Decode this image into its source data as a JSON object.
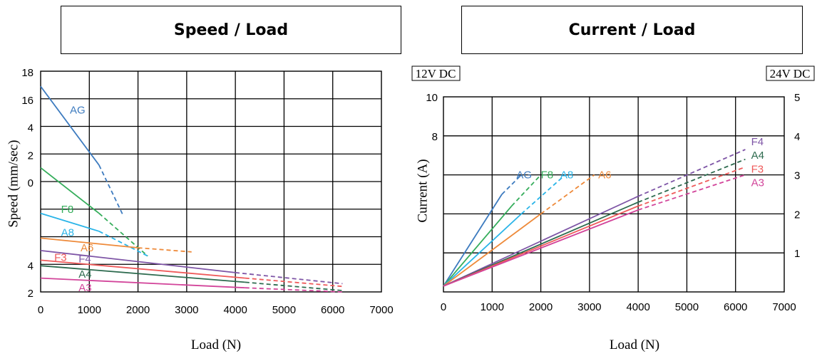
{
  "titles": {
    "left": "Speed / Load",
    "right": "Current / Load"
  },
  "colors": {
    "AG": "#3d7bbf",
    "F8": "#35ad5b",
    "A8": "#29b4e8",
    "A6": "#ee8a3a",
    "F3": "#ef5a5a",
    "F4": "#7e55a6",
    "A4": "#2e6b4f",
    "A3": "#d2449a"
  },
  "chart_data": [
    {
      "type": "line",
      "title": "Speed / Load",
      "xlabel": "Load (N)",
      "ylabel": "Speed (mm/sec)",
      "xlim": [
        0,
        7000
      ],
      "ylim": [
        2,
        18
      ],
      "x_ticks": [
        "0",
        "1000",
        "2000",
        "3000",
        "4000",
        "5000",
        "6000",
        "7000"
      ],
      "y_tick_labels": [
        {
          "v": 18,
          "t": "18"
        },
        {
          "v": 16,
          "t": "16"
        },
        {
          "v": 14,
          "t": "4"
        },
        {
          "v": 12,
          "t": "2"
        },
        {
          "v": 10,
          "t": "0"
        },
        {
          "v": 4,
          "t": "4"
        },
        {
          "v": 2,
          "t": "2"
        }
      ],
      "grid": true,
      "series": [
        {
          "name": "AG",
          "solid": [
            [
              0,
              16.9
            ],
            [
              1200,
              11.2
            ]
          ],
          "dashed": [
            [
              1200,
              11.2
            ],
            [
              1700,
              7.5
            ]
          ],
          "label_at": [
            600,
            15.2
          ]
        },
        {
          "name": "F8",
          "solid": [
            [
              0,
              11.0
            ],
            [
              1200,
              7.7
            ]
          ],
          "dashed": [
            [
              1200,
              7.7
            ],
            [
              2200,
              4.6
            ]
          ],
          "label_at": [
            420,
            8.0
          ]
        },
        {
          "name": "A8",
          "solid": [
            [
              0,
              7.7
            ],
            [
              1200,
              6.4
            ]
          ],
          "dashed": [
            [
              1200,
              6.4
            ],
            [
              2200,
              4.6
            ]
          ],
          "label_at": [
            420,
            6.3
          ]
        },
        {
          "name": "A6",
          "solid": [
            [
              0,
              5.9
            ],
            [
              2000,
              5.2
            ]
          ],
          "dashed": [
            [
              2000,
              5.2
            ],
            [
              3100,
              4.9
            ]
          ],
          "label_at": [
            820,
            5.2
          ]
        },
        {
          "name": "F4",
          "solid": [
            [
              0,
              5.0
            ],
            [
              4000,
              3.4
            ]
          ],
          "dashed": [
            [
              4000,
              3.4
            ],
            [
              6200,
              2.6
            ]
          ],
          "label_at": [
            780,
            4.4
          ]
        },
        {
          "name": "F3",
          "solid": [
            [
              0,
              4.3
            ],
            [
              4200,
              3.0
            ]
          ],
          "dashed": [
            [
              4200,
              3.0
            ],
            [
              6200,
              2.4
            ]
          ],
          "label_at": [
            280,
            4.5
          ]
        },
        {
          "name": "A4",
          "solid": [
            [
              0,
              3.9
            ],
            [
              4200,
              2.7
            ]
          ],
          "dashed": [
            [
              4200,
              2.7
            ],
            [
              6200,
              2.1
            ]
          ],
          "label_at": [
            780,
            3.3
          ]
        },
        {
          "name": "A3",
          "solid": [
            [
              0,
              3.0
            ],
            [
              4200,
              2.3
            ]
          ],
          "dashed": [
            [
              4200,
              2.3
            ],
            [
              6200,
              2.0
            ]
          ],
          "label_at": [
            780,
            2.3
          ]
        }
      ]
    },
    {
      "type": "line",
      "title": "Current / Load",
      "xlabel": "Load (N)",
      "ylabel": "Current (A)",
      "left_axis_label": "12V DC",
      "right_axis_label": "24V DC",
      "xlim": [
        0,
        7000
      ],
      "ylim": [
        0,
        10
      ],
      "x_ticks": [
        "0",
        "1000",
        "2000",
        "3000",
        "4000",
        "5000",
        "6000",
        "7000"
      ],
      "y_tick_labels_left": [
        {
          "v": 10,
          "t": "10"
        },
        {
          "v": 8,
          "t": "8"
        }
      ],
      "y_tick_labels_right": [
        {
          "v": 10,
          "t": "5"
        },
        {
          "v": 8,
          "t": "4"
        },
        {
          "v": 6,
          "t": "3"
        },
        {
          "v": 4,
          "t": "2"
        },
        {
          "v": 2,
          "t": "1"
        }
      ],
      "grid": true,
      "series": [
        {
          "name": "AG",
          "solid": [
            [
              0,
              0.3
            ],
            [
              1200,
              5.0
            ]
          ],
          "dashed": [
            [
              1200,
              5.0
            ],
            [
              1600,
              6.0
            ]
          ],
          "label_at": [
            1500,
            6.0
          ]
        },
        {
          "name": "F8",
          "solid": [
            [
              0,
              0.3
            ],
            [
              1400,
              4.4
            ]
          ],
          "dashed": [
            [
              1400,
              4.4
            ],
            [
              2000,
              6.0
            ]
          ],
          "label_at": [
            2000,
            6.0
          ]
        },
        {
          "name": "A8",
          "solid": [
            [
              0,
              0.3
            ],
            [
              1600,
              4.0
            ]
          ],
          "dashed": [
            [
              1600,
              4.0
            ],
            [
              2500,
              6.0
            ]
          ],
          "label_at": [
            2400,
            6.0
          ]
        },
        {
          "name": "A6",
          "solid": [
            [
              0,
              0.3
            ],
            [
              2000,
              4.0
            ]
          ],
          "dashed": [
            [
              2000,
              4.0
            ],
            [
              3100,
              6.0
            ]
          ],
          "label_at": [
            3180,
            6.0
          ]
        },
        {
          "name": "F4",
          "solid": [
            [
              0,
              0.3
            ],
            [
              4000,
              4.9
            ]
          ],
          "dashed": [
            [
              4000,
              4.9
            ],
            [
              6200,
              7.3
            ]
          ],
          "label_at": [
            6320,
            7.7
          ]
        },
        {
          "name": "A4",
          "solid": [
            [
              0,
              0.3
            ],
            [
              4000,
              4.6
            ]
          ],
          "dashed": [
            [
              4000,
              4.6
            ],
            [
              6200,
              6.8
            ]
          ],
          "label_at": [
            6320,
            7.0
          ]
        },
        {
          "name": "F3",
          "solid": [
            [
              0,
              0.3
            ],
            [
              4000,
              4.4
            ]
          ],
          "dashed": [
            [
              4000,
              4.4
            ],
            [
              6200,
              6.4
            ]
          ],
          "label_at": [
            6320,
            6.3
          ]
        },
        {
          "name": "A3",
          "solid": [
            [
              0,
              0.3
            ],
            [
              4000,
              4.2
            ]
          ],
          "dashed": [
            [
              4000,
              4.2
            ],
            [
              6200,
              6.0
            ]
          ],
          "label_at": [
            6320,
            5.6
          ]
        }
      ]
    }
  ]
}
